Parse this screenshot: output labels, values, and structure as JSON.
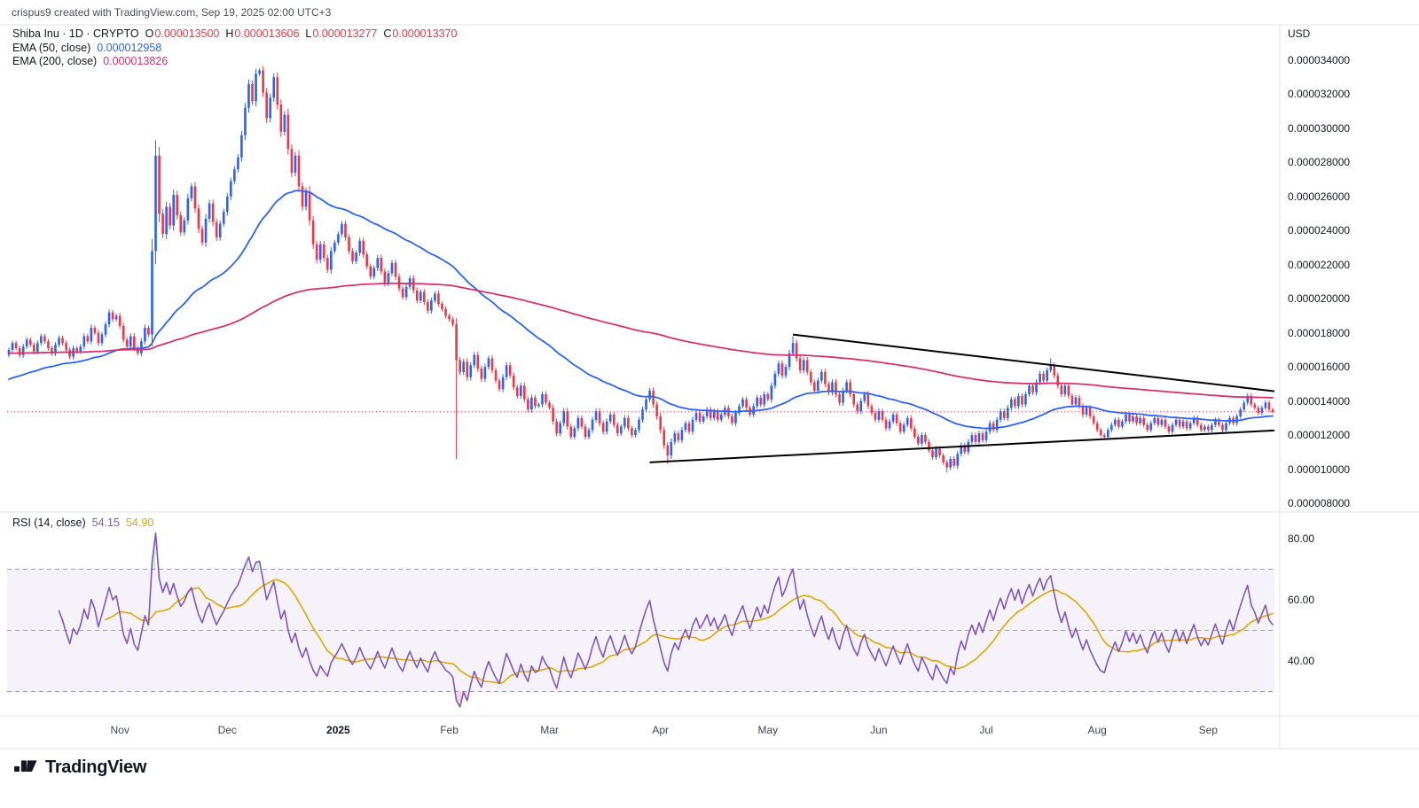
{
  "header": {
    "attribution": "crispus9 created with TradingView.com, Sep 19, 2025 02:00 UTC+3"
  },
  "legend": {
    "symbol": "Shiba Inu · 1D · CRYPTO",
    "o_label": "O",
    "o": "0.000013500",
    "h_label": "H",
    "h": "0.000013606",
    "l_label": "L",
    "l": "0.000013277",
    "c_label": "C",
    "c": "0.000013370",
    "ema50_label": "EMA (50, close)",
    "ema50_value": "0.000012958",
    "ema200_label": "EMA (200, close)",
    "ema200_value": "0.000013826"
  },
  "rsi_legend": {
    "label": "RSI (14, close)",
    "value": "54.15",
    "ma_value": "54.90"
  },
  "footer": {
    "brand": "TradingView"
  },
  "chart_data": {
    "type": "candlestick",
    "symbol": "Shiba Inu",
    "interval": "1D",
    "exchange": "CRYPTO",
    "price_unit": "USD",
    "price_value_scale": 1e-06,
    "ohlc_last": {
      "open": 13.5,
      "high": 13.606,
      "low": 13.277,
      "close": 13.37
    },
    "closes": [
      17.0,
      17.4,
      17.1,
      16.7,
      17.2,
      17.6,
      17.3,
      16.9,
      17.4,
      17.8,
      17.5,
      17.1,
      16.8,
      17.3,
      17.7,
      17.4,
      17.0,
      16.6,
      17.1,
      16.9,
      17.2,
      17.8,
      17.5,
      18.3,
      18.0,
      17.4,
      17.9,
      18.5,
      19.2,
      18.8,
      19.0,
      18.4,
      17.6,
      17.2,
      17.8,
      17.1,
      16.8,
      17.5,
      18.3,
      17.9,
      22.8,
      28.4,
      25.0,
      23.8,
      25.4,
      24.3,
      26.1,
      24.9,
      23.9,
      24.6,
      25.9,
      26.6,
      25.3,
      24.1,
      23.3,
      24.7,
      25.6,
      24.5,
      23.6,
      24.4,
      25.1,
      26.0,
      26.9,
      27.6,
      28.3,
      29.6,
      31.2,
      32.6,
      31.6,
      33.2,
      33.4,
      32.1,
      30.6,
      31.8,
      33.0,
      31.4,
      29.8,
      30.8,
      28.8,
      27.4,
      28.4,
      26.6,
      25.4,
      26.3,
      24.6,
      23.2,
      22.3,
      23.2,
      22.4,
      21.7,
      22.8,
      23.3,
      23.8,
      24.4,
      23.6,
      22.8,
      22.2,
      22.7,
      23.4,
      22.6,
      21.9,
      21.3,
      21.8,
      22.4,
      21.6,
      20.9,
      21.5,
      22.1,
      21.3,
      20.6,
      20.1,
      20.7,
      21.2,
      20.5,
      19.9,
      20.4,
      19.8,
      19.3,
      19.9,
      20.3,
      19.7,
      19.4,
      19.0,
      18.8,
      18.5,
      16.4,
      15.7,
      16.3,
      15.4,
      16.1,
      16.7,
      15.9,
      15.3,
      16.0,
      16.5,
      15.8,
      15.2,
      14.7,
      15.4,
      16.1,
      15.5,
      14.8,
      14.3,
      14.9,
      14.1,
      13.5,
      14.2,
      13.7,
      13.8,
      14.4,
      13.9,
      13.6,
      12.8,
      12.1,
      12.7,
      13.4,
      12.5,
      11.9,
      12.4,
      13.0,
      12.5,
      11.9,
      12.3,
      12.9,
      13.4,
      12.7,
      12.2,
      12.8,
      13.2,
      12.6,
      12.1,
      12.5,
      13.0,
      12.4,
      12.0,
      12.3,
      12.9,
      13.5,
      14.1,
      14.6,
      13.8,
      13.1,
      12.3,
      11.4,
      10.8,
      11.6,
      12.1,
      11.7,
      12.3,
      12.7,
      12.2,
      12.9,
      13.3,
      12.8,
      13.1,
      13.5,
      13.0,
      13.4,
      12.9,
      13.2,
      13.6,
      13.1,
      12.7,
      13.3,
      13.7,
      14.1,
      13.6,
      13.2,
      13.7,
      14.2,
      13.8,
      14.4,
      14.1,
      14.9,
      15.6,
      16.2,
      15.5,
      16.0,
      16.8,
      17.4,
      16.5,
      15.8,
      16.4,
      15.7,
      15.1,
      14.6,
      15.2,
      15.7,
      15.0,
      14.5,
      15.1,
      14.4,
      13.9,
      14.6,
      15.1,
      14.4,
      13.8,
      13.4,
      14.0,
      14.4,
      13.7,
      13.3,
      12.9,
      13.4,
      12.9,
      12.4,
      12.8,
      13.2,
      12.7,
      12.2,
      12.6,
      13.0,
      12.4,
      11.9,
      11.5,
      12.0,
      11.6,
      11.1,
      10.7,
      11.2,
      10.8,
      10.4,
      10.1,
      10.6,
      10.2,
      10.9,
      11.4,
      11.0,
      11.6,
      12.0,
      11.6,
      12.1,
      11.7,
      12.2,
      12.7,
      12.3,
      12.9,
      13.4,
      13.0,
      13.6,
      14.1,
      13.7,
      14.3,
      13.8,
      14.4,
      14.9,
      14.5,
      15.1,
      15.6,
      15.2,
      15.8,
      16.1,
      15.5,
      14.9,
      14.4,
      14.9,
      14.3,
      13.8,
      14.2,
      13.7,
      13.2,
      13.6,
      13.1,
      12.7,
      12.3,
      12.0,
      11.9,
      12.3,
      12.6,
      12.9,
      12.5,
      12.8,
      13.2,
      12.8,
      13.1,
      12.7,
      13.0,
      12.6,
      12.3,
      12.7,
      13.0,
      12.6,
      12.9,
      12.5,
      12.2,
      12.6,
      12.9,
      12.5,
      12.8,
      12.4,
      12.7,
      13.0,
      12.6,
      12.3,
      12.5,
      12.3,
      12.6,
      12.9,
      12.6,
      12.3,
      12.7,
      13.0,
      12.7,
      13.1,
      13.5,
      13.9,
      14.3,
      13.8,
      13.6,
      13.3,
      13.6,
      13.9,
      13.5,
      13.37
    ],
    "wick_overrides": {
      "41": {
        "high": 29.3
      },
      "125": {
        "low": 10.6
      },
      "184": {
        "low": 10.3
      },
      "219": {
        "high": 17.8
      },
      "262": {
        "low": 9.8
      },
      "291": {
        "high": 16.5
      }
    },
    "emas": [
      {
        "period": 50,
        "color": "#2962ff",
        "alpha": 0.0392,
        "seed": 15.2,
        "last_value": 12.958
      },
      {
        "period": 200,
        "color": "#d6336c",
        "alpha": 0.009,
        "seed": 16.8,
        "last_value": 13.826
      }
    ],
    "rsi": {
      "period": 14,
      "ma_period": 14,
      "upper": 70,
      "middle": 50,
      "lower": 30,
      "last": 54.15,
      "ma_last": 54.9
    },
    "trendlines": [
      {
        "d1": 179,
        "p1": 10.4,
        "d2": 356,
        "p2": 12.27,
        "color": "#000000",
        "width": 2
      },
      {
        "d1": 219,
        "p1": 17.9,
        "d2": 356,
        "p2": 14.57,
        "color": "#000000",
        "width": 2
      }
    ],
    "price_axis": {
      "unit": "USD",
      "values": [
        34,
        32,
        30,
        28,
        26,
        24,
        22,
        20,
        18,
        16,
        14,
        12,
        10,
        8
      ],
      "labels": [
        "0.000034000",
        "0.000032000",
        "0.000030000",
        "0.000028000",
        "0.000026000",
        "0.000024000",
        "0.000022000",
        "0.000020000",
        "0.000018000",
        "0.000016000",
        "0.000014000",
        "0.000012000",
        "0.000010000",
        "0.000008000"
      ]
    },
    "rsi_axis": {
      "values": [
        80,
        60,
        40
      ],
      "labels": [
        "80.00",
        "60.00",
        "40.00"
      ]
    },
    "time_axis": {
      "ticks": [
        {
          "label": "Nov",
          "day": 31
        },
        {
          "label": "Dec",
          "day": 61
        },
        {
          "label": "2025",
          "day": 92,
          "bold": true
        },
        {
          "label": "Feb",
          "day": 123
        },
        {
          "label": "Mar",
          "day": 151
        },
        {
          "label": "Apr",
          "day": 182
        },
        {
          "label": "May",
          "day": 212
        },
        {
          "label": "Jun",
          "day": 243
        },
        {
          "label": "Jul",
          "day": 273
        },
        {
          "label": "Aug",
          "day": 304
        },
        {
          "label": "Sep",
          "day": 335
        }
      ]
    },
    "colors": {
      "up": "#2962ff",
      "down": "#f23645",
      "trendline": "#000000",
      "rsi": "#7e57c2",
      "rsi_ma": "#e0a800",
      "rsi_band_fill": "rgba(126,87,194,0.08)",
      "rsi_band_line": "#9b9bc0",
      "rsi_overbought_fill": "rgba(76,175,80,0.25)",
      "rsi_oversold_fill": "rgba(247,82,95,0.25)",
      "last_price_line": "#f23645",
      "separator": "#e0e3eb"
    }
  }
}
